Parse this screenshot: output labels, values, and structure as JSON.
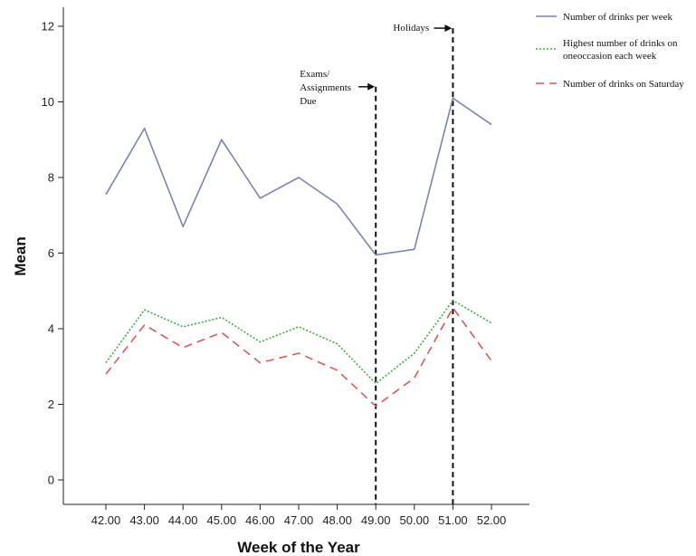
{
  "chart_data": {
    "type": "line",
    "xlabel": "Week of the Year",
    "ylabel": "Mean",
    "xlim": [
      42,
      52
    ],
    "ylim": [
      0,
      12
    ],
    "x": [
      42,
      43,
      44,
      45,
      46,
      47,
      48,
      49,
      50,
      51,
      52
    ],
    "x_tick_labels": [
      "42.00",
      "43.00",
      "44.00",
      "45.00",
      "46.00",
      "47.00",
      "48.00",
      "49.00",
      "50.00",
      "51.00",
      "52.00"
    ],
    "y_ticks": [
      0,
      2,
      4,
      6,
      8,
      10,
      12
    ],
    "y_tick_labels": [
      "0",
      "2",
      "4",
      "6",
      "8",
      "10",
      "12"
    ],
    "series": [
      {
        "name": "Number of drinks per week",
        "values": [
          7.55,
          9.3,
          6.7,
          9.0,
          7.45,
          8.0,
          7.3,
          5.95,
          6.1,
          10.1,
          9.4
        ],
        "color": "#7b84b0",
        "style": "solid"
      },
      {
        "name": "Highest number of drinks on oneoccasion each week",
        "legend_lines": [
          "Highest number of drinks on",
          "oneoccasion each week"
        ],
        "values": [
          3.1,
          4.5,
          4.05,
          4.3,
          3.65,
          4.05,
          3.6,
          2.55,
          3.35,
          4.75,
          4.15
        ],
        "color": "#3cae3c",
        "style": "dotted"
      },
      {
        "name": "Number of drinks on Saturday",
        "values": [
          2.8,
          4.1,
          3.5,
          3.9,
          3.1,
          3.35,
          2.9,
          1.95,
          2.7,
          4.55,
          3.15
        ],
        "color": "#d45a5a",
        "style": "dashed"
      }
    ],
    "annotations": [
      {
        "lines": [
          "Exams/",
          "Assignments",
          "Due"
        ],
        "x": 49,
        "y_top": 10.4
      },
      {
        "lines": [
          "Holidays"
        ],
        "x": 51,
        "y_top": 11.95
      }
    ],
    "grid": false,
    "legend_position": "top-right"
  }
}
